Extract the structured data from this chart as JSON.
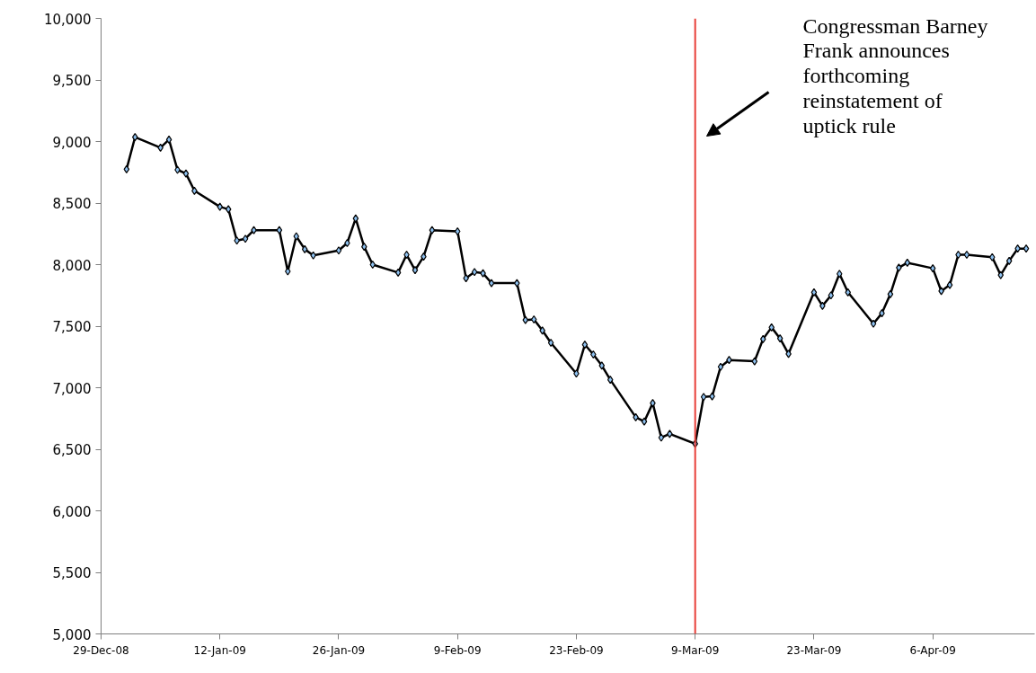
{
  "chart_data": {
    "type": "line",
    "x": [
      "2009-01-01",
      "2009-01-02",
      "2009-01-05",
      "2009-01-06",
      "2009-01-07",
      "2009-01-08",
      "2009-01-09",
      "2009-01-12",
      "2009-01-13",
      "2009-01-14",
      "2009-01-15",
      "2009-01-16",
      "2009-01-19",
      "2009-01-20",
      "2009-01-21",
      "2009-01-22",
      "2009-01-23",
      "2009-01-26",
      "2009-01-27",
      "2009-01-28",
      "2009-01-29",
      "2009-01-30",
      "2009-02-02",
      "2009-02-03",
      "2009-02-04",
      "2009-02-05",
      "2009-02-06",
      "2009-02-09",
      "2009-02-10",
      "2009-02-11",
      "2009-02-12",
      "2009-02-13",
      "2009-02-16",
      "2009-02-17",
      "2009-02-18",
      "2009-02-19",
      "2009-02-20",
      "2009-02-23",
      "2009-02-24",
      "2009-02-25",
      "2009-02-26",
      "2009-02-27",
      "2009-03-02",
      "2009-03-03",
      "2009-03-04",
      "2009-03-05",
      "2009-03-06",
      "2009-03-09",
      "2009-03-10",
      "2009-03-11",
      "2009-03-12",
      "2009-03-13",
      "2009-03-16",
      "2009-03-17",
      "2009-03-18",
      "2009-03-19",
      "2009-03-20",
      "2009-03-23",
      "2009-03-24",
      "2009-03-25",
      "2009-03-26",
      "2009-03-27",
      "2009-03-30",
      "2009-03-31",
      "2009-04-01",
      "2009-04-02",
      "2009-04-03",
      "2009-04-06",
      "2009-04-07",
      "2009-04-08",
      "2009-04-09",
      "2009-04-10",
      "2009-04-13",
      "2009-04-14",
      "2009-04-15",
      "2009-04-16",
      "2009-04-17"
    ],
    "series": [
      {
        "color": "#000000",
        "values": [
          8775,
          9035,
          8950,
          9015,
          8770,
          8740,
          8600,
          8470,
          8450,
          8195,
          8210,
          8280,
          8280,
          7945,
          8230,
          8125,
          8075,
          8115,
          8175,
          8375,
          8145,
          8000,
          7935,
          8080,
          7955,
          8065,
          8280,
          8270,
          7890,
          7940,
          7930,
          7850,
          7850,
          7550,
          7555,
          7465,
          7365,
          7115,
          7350,
          7270,
          7180,
          7065,
          6760,
          6725,
          6875,
          6595,
          6625,
          6545,
          6925,
          6930,
          7170,
          7225,
          7215,
          7395,
          7490,
          7400,
          7275,
          7775,
          7665,
          7750,
          7925,
          7775,
          7520,
          7605,
          7760,
          7975,
          8015,
          7970,
          7785,
          7835,
          8080,
          8080,
          8060,
          7915,
          8030,
          8130,
          8130
        ]
      }
    ],
    "xlim": [
      "2008-12-29",
      "2009-04-18"
    ],
    "xticks": [
      {
        "value": "2008-12-29",
        "label": "29-Dec-08"
      },
      {
        "value": "2009-01-12",
        "label": "12-Jan-09"
      },
      {
        "value": "2009-01-26",
        "label": "26-Jan-09"
      },
      {
        "value": "2009-02-09",
        "label": "9-Feb-09"
      },
      {
        "value": "2009-02-23",
        "label": "23-Feb-09"
      },
      {
        "value": "2009-03-09",
        "label": "9-Mar-09"
      },
      {
        "value": "2009-03-23",
        "label": "23-Mar-09"
      },
      {
        "value": "2009-04-06",
        "label": "6-Apr-09"
      }
    ],
    "ylim": [
      5000,
      10000
    ],
    "yticks": [
      {
        "value": 5000,
        "label": "5,000"
      },
      {
        "value": 5500,
        "label": "5,500"
      },
      {
        "value": 6000,
        "label": "6,000"
      },
      {
        "value": 6500,
        "label": "6,500"
      },
      {
        "value": 7000,
        "label": "7,000"
      },
      {
        "value": 7500,
        "label": "7,500"
      },
      {
        "value": 8000,
        "label": "8,000"
      },
      {
        "value": 8500,
        "label": "8,500"
      },
      {
        "value": 9000,
        "label": "9,000"
      },
      {
        "value": 9500,
        "label": "9,500"
      },
      {
        "value": 10000,
        "label": "10,000"
      }
    ],
    "ref_lines": [
      {
        "axis": "x",
        "value": "2009-03-09",
        "color": "#e8403a"
      }
    ],
    "annotations": [
      "Congressman Barney\nFrank announces\nforthcoming\nreinstatement of\nuptick rule"
    ],
    "marker": "diamond",
    "grid": false
  }
}
